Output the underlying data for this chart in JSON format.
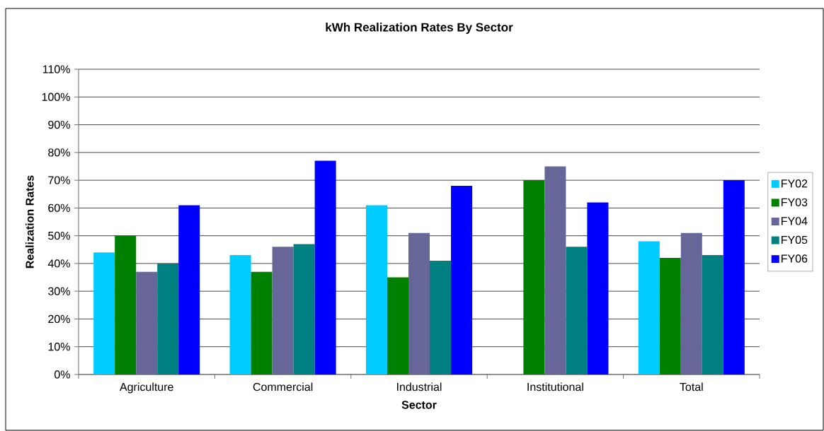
{
  "chart_data": {
    "type": "bar",
    "title": "kWh Realization Rates By Sector",
    "xlabel": "Sector",
    "ylabel": "Realization Rates",
    "categories": [
      "Agriculture",
      "Commercial",
      "Industrial",
      "Institutional",
      "Total"
    ],
    "series": [
      {
        "name": "FY02",
        "color": "#00ccff",
        "values": [
          44,
          43,
          61,
          null,
          48
        ]
      },
      {
        "name": "FY03",
        "color": "#008000",
        "values": [
          50,
          37,
          35,
          70,
          42
        ]
      },
      {
        "name": "FY04",
        "color": "#666699",
        "values": [
          37,
          46,
          51,
          75,
          51
        ]
      },
      {
        "name": "FY05",
        "color": "#008080",
        "values": [
          40,
          47,
          41,
          46,
          43
        ]
      },
      {
        "name": "FY06",
        "color": "#0000ff",
        "values": [
          61,
          77,
          68,
          62,
          70
        ]
      }
    ],
    "ylim": [
      0,
      110
    ],
    "yticks": [
      {
        "value": 0,
        "label": "0%"
      },
      {
        "value": 10,
        "label": "10%"
      },
      {
        "value": 20,
        "label": "20%"
      },
      {
        "value": 30,
        "label": "30%"
      },
      {
        "value": 40,
        "label": "40%"
      },
      {
        "value": 50,
        "label": "50%"
      },
      {
        "value": 60,
        "label": "60%"
      },
      {
        "value": 70,
        "label": "70%"
      },
      {
        "value": 80,
        "label": "80%"
      },
      {
        "value": 90,
        "label": "90%"
      },
      {
        "value": 100,
        "label": "100%"
      },
      {
        "value": 110,
        "label": "110%"
      }
    ],
    "grid": "y",
    "legend": "right"
  }
}
